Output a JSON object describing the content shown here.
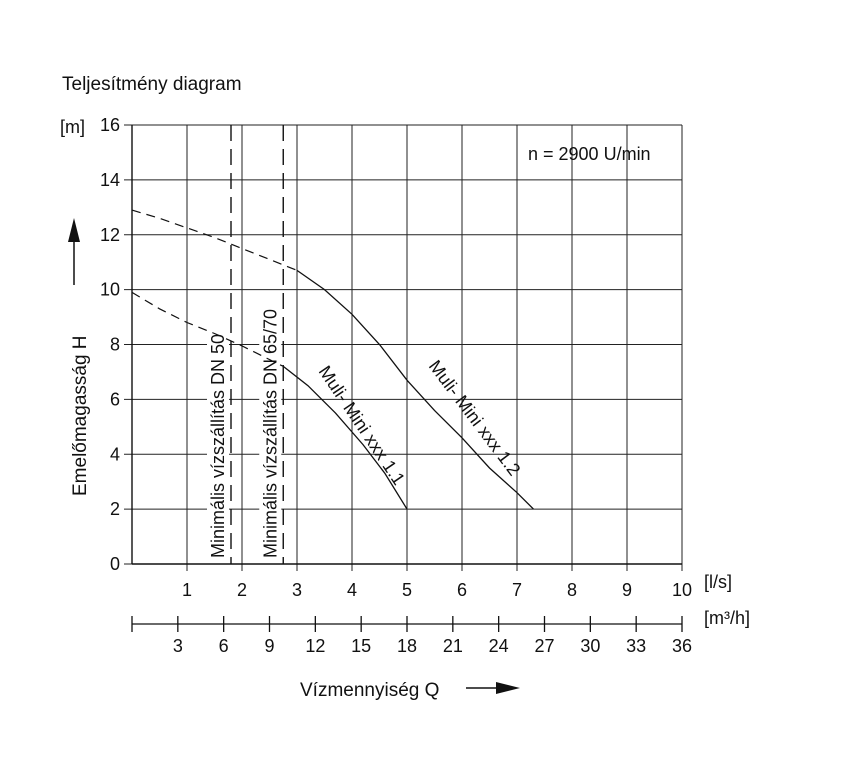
{
  "chart_data": {
    "type": "line",
    "title": "Teljesítmény diagram",
    "ylabel": "Emelőmagasság H",
    "y_unit": "[m]",
    "xlabel": "Vízmennyiség Q",
    "x_unit": "[l/s]",
    "x2_unit": "[m³/h]",
    "xlim": [
      0,
      10
    ],
    "ylim": [
      0,
      16
    ],
    "x_ticks": [
      "1",
      "2",
      "3",
      "4",
      "5",
      "6",
      "7",
      "8",
      "9",
      "10"
    ],
    "y_ticks": [
      "0",
      "2",
      "4",
      "6",
      "8",
      "10",
      "12",
      "14",
      "16"
    ],
    "x2_ticks": [
      "3",
      "6",
      "9",
      "12",
      "15",
      "18",
      "21",
      "24",
      "27",
      "30",
      "33",
      "36"
    ],
    "grid": true,
    "annotation": "n = 2900 U/min",
    "min_flow_lines": [
      {
        "label": "Minimális vízszállítás DN 50",
        "x": 1.8
      },
      {
        "label": "Minimális vízszállítás DN 65/70",
        "x": 2.75
      }
    ],
    "series": [
      {
        "name": "Muli- Mini xxx 1.1",
        "dashed_points": [
          [
            0,
            9.9
          ],
          [
            0.5,
            9.3
          ],
          [
            1.0,
            8.8
          ],
          [
            1.5,
            8.4
          ],
          [
            2.0,
            7.95
          ],
          [
            2.75,
            7.2
          ]
        ],
        "solid_points": [
          [
            2.75,
            7.2
          ],
          [
            3.2,
            6.5
          ],
          [
            3.7,
            5.5
          ],
          [
            4.2,
            4.35
          ],
          [
            4.6,
            3.3
          ],
          [
            5.0,
            2.0
          ]
        ]
      },
      {
        "name": "Muli- Mini xxx 1.2",
        "dashed_points": [
          [
            0,
            12.9
          ],
          [
            0.5,
            12.6
          ],
          [
            1.0,
            12.25
          ],
          [
            1.5,
            11.9
          ],
          [
            2.0,
            11.5
          ],
          [
            2.5,
            11.1
          ],
          [
            3.0,
            10.7
          ]
        ],
        "solid_points": [
          [
            3.0,
            10.7
          ],
          [
            3.5,
            10.0
          ],
          [
            4.0,
            9.1
          ],
          [
            4.5,
            8.0
          ],
          [
            5.0,
            6.7
          ],
          [
            5.5,
            5.6
          ],
          [
            6.0,
            4.6
          ],
          [
            6.5,
            3.5
          ],
          [
            7.0,
            2.6
          ],
          [
            7.3,
            2.0
          ]
        ]
      }
    ]
  }
}
